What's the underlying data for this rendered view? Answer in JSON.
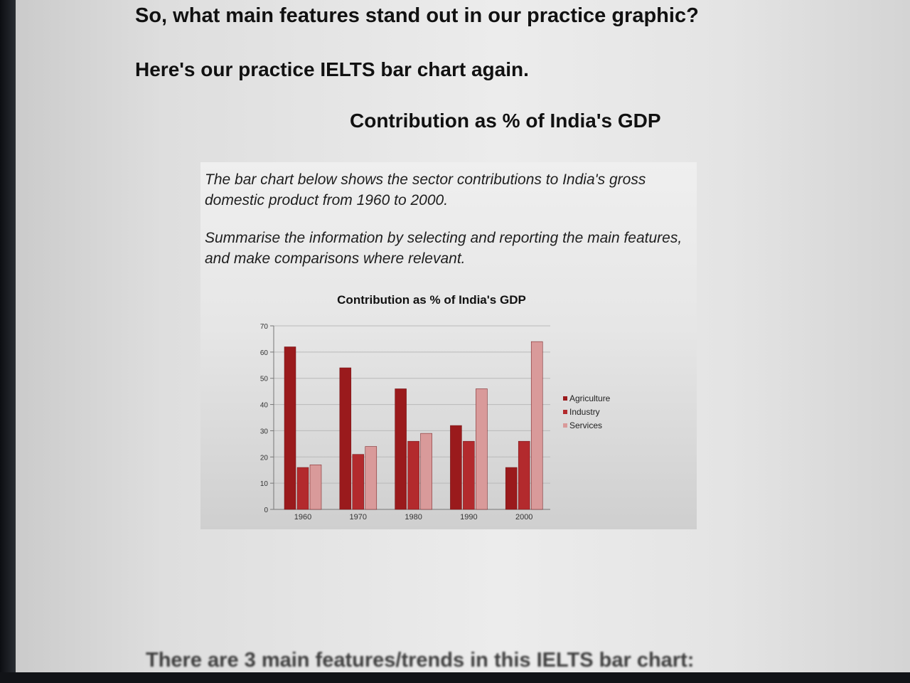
{
  "page": {
    "heading1": "So, what main features stand out in our practice graphic?",
    "heading2": "Here's our practice IELTS bar chart again.",
    "heading3": "Contribution as % of India's GDP",
    "footer_cutoff": "There are 3 main features/trends in this IELTS bar chart:"
  },
  "task": {
    "paragraph1": "The bar chart below shows the sector contributions to India's gross domestic product from 1960 to 2000.",
    "paragraph2": "Summarise the information by selecting and reporting the main features, and make comparisons where relevant."
  },
  "chart_data": {
    "type": "bar",
    "title": "Contribution as % of India's GDP",
    "xlabel": "",
    "ylabel": "",
    "categories": [
      "1960",
      "1970",
      "1980",
      "1990",
      "2000"
    ],
    "series": [
      {
        "name": "Agriculture",
        "values": [
          62,
          54,
          46,
          32,
          16
        ],
        "color": "#9a1a1c"
      },
      {
        "name": "Industry",
        "values": [
          16,
          21,
          26,
          26,
          26
        ],
        "color": "#b32a2d"
      },
      {
        "name": "Services",
        "values": [
          17,
          24,
          29,
          46,
          64
        ],
        "color": "#d99a9a"
      }
    ],
    "ylim": [
      0,
      70
    ],
    "yticks": [
      0,
      10,
      20,
      30,
      40,
      50,
      60,
      70
    ],
    "grid": true,
    "legend": "right"
  }
}
